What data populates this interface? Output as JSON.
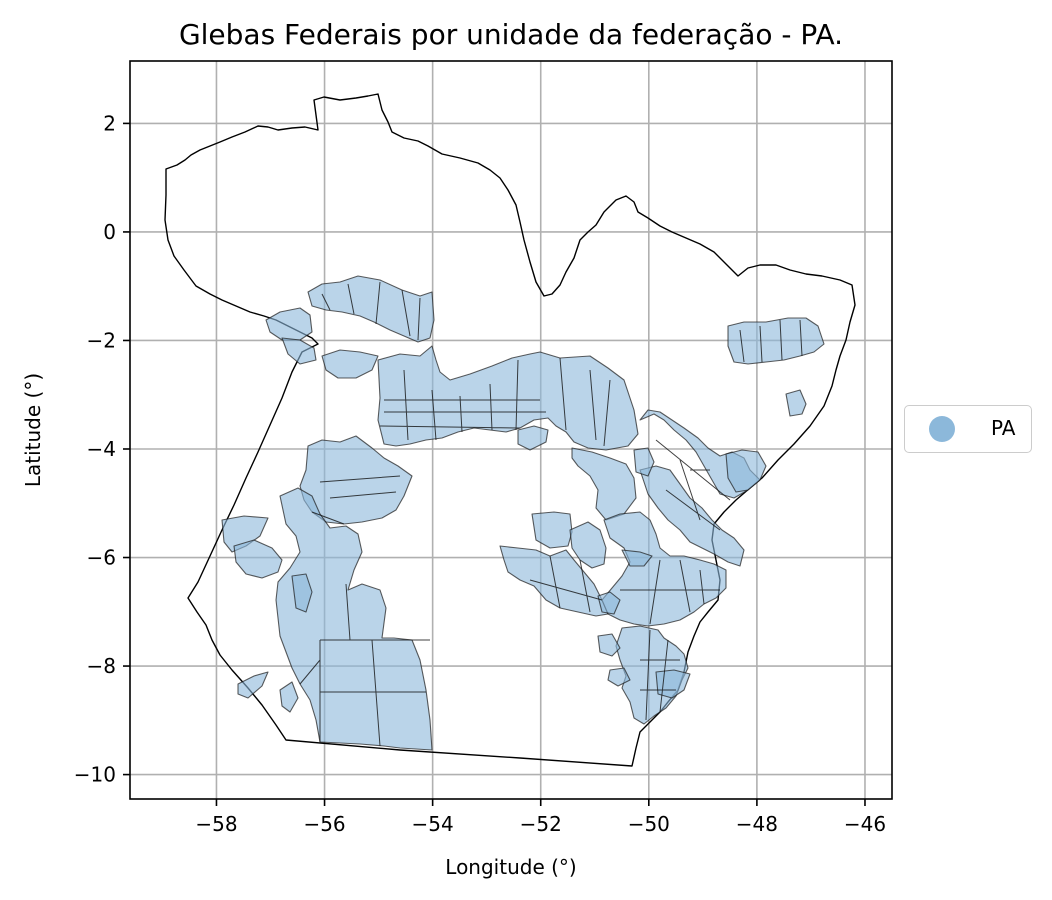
{
  "map": {
    "title": "Glebas Federais por unidade da federação - PA.",
    "xlabel": "Longitude (°)",
    "ylabel": "Latitude (°)",
    "x_ticks": [
      "−58",
      "−56",
      "−54",
      "−52",
      "−50",
      "−48",
      "−46"
    ],
    "y_ticks": [
      "2",
      "0",
      "−2",
      "−4",
      "−6",
      "−8",
      "−10"
    ],
    "grid": true,
    "fill_color": "#8cb8da",
    "outline_color": "#000000",
    "legend": {
      "placement": "center-right, outside plot",
      "label": "PA"
    }
  },
  "chart_data": {
    "type": "map",
    "title": "Glebas Federais por unidade da federação - PA.",
    "xlabel": "Longitude (°)",
    "ylabel": "Latitude (°)",
    "xlim": [
      -59.6,
      -45.5
    ],
    "ylim": [
      -10.45,
      3.15
    ],
    "x_ticks": [
      -58,
      -56,
      -54,
      -52,
      -50,
      -48,
      -46
    ],
    "y_ticks": [
      2,
      0,
      -2,
      -4,
      -6,
      -8,
      -10
    ],
    "series": [
      {
        "name": "PA",
        "color": "#8cb8da"
      }
    ]
  }
}
